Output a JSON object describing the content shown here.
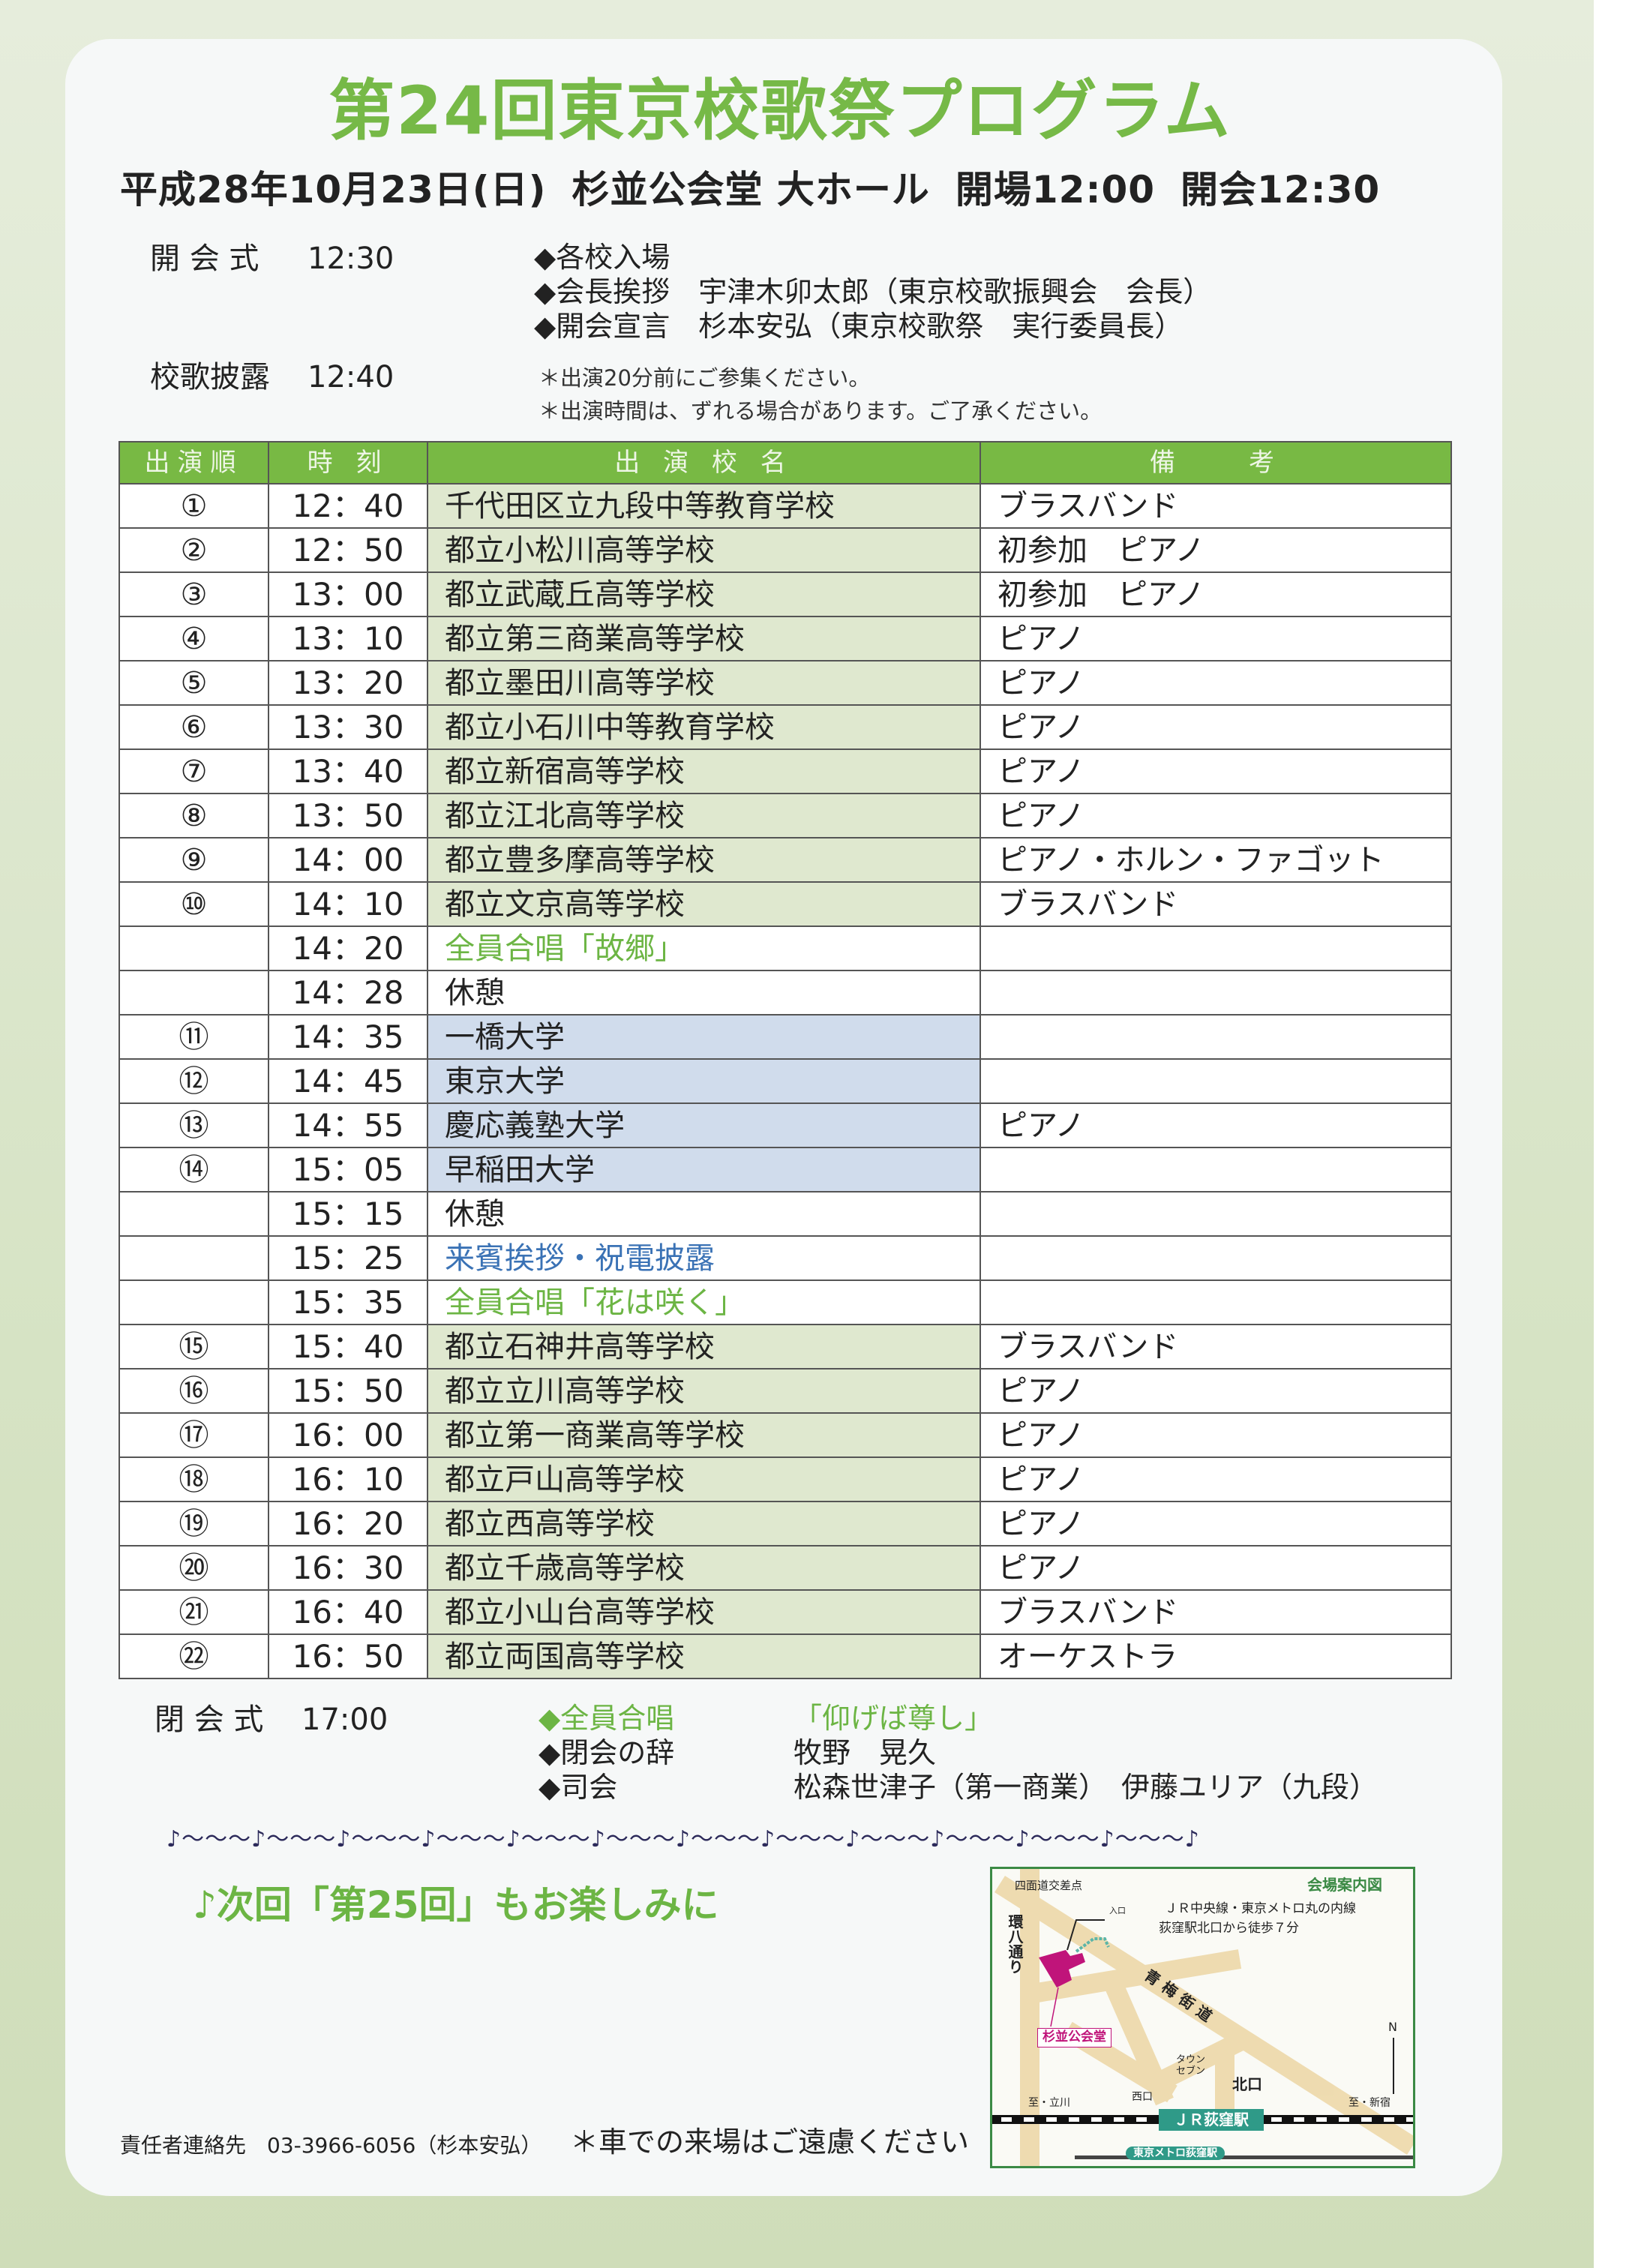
{
  "title": "第24回東京校歌祭プログラム",
  "subtitle": {
    "date": "平成28年10月23日(日)",
    "venue": "杉並公会堂 大ホール",
    "open": "開場12:00",
    "start": "開会12:30"
  },
  "opening": {
    "label": "開 会 式",
    "time": "12:30",
    "items": [
      "◆各校入場",
      "◆会長挨拶　宇津木卯太郎（東京校歌振興会　会長）",
      "◆開会宣言　杉本安弘（東京校歌祭　実行委員長）"
    ]
  },
  "songs": {
    "label": "校歌披露",
    "time": "12:40",
    "notes": [
      "＊出演20分前にご参集ください。",
      "＊出演時間は、ずれる場合があります。ご了承ください。"
    ]
  },
  "table": {
    "headers": [
      "出演順",
      "時 刻",
      "出 演 校 名",
      "備　　考"
    ],
    "rows": [
      {
        "no": "①",
        "time": "12：40",
        "name": "千代田区立九段中等教育学校",
        "note": "ブラスバンド",
        "style": "school"
      },
      {
        "no": "②",
        "time": "12：50",
        "name": "都立小松川高等学校",
        "note": "初参加　ピアノ",
        "style": "school"
      },
      {
        "no": "③",
        "time": "13：00",
        "name": "都立武蔵丘高等学校",
        "note": "初参加　ピアノ",
        "style": "school"
      },
      {
        "no": "④",
        "time": "13：10",
        "name": "都立第三商業高等学校",
        "note": "ピアノ",
        "style": "school"
      },
      {
        "no": "⑤",
        "time": "13：20",
        "name": "都立墨田川高等学校",
        "note": "ピアノ",
        "style": "school"
      },
      {
        "no": "⑥",
        "time": "13：30",
        "name": "都立小石川中等教育学校",
        "note": "ピアノ",
        "style": "school"
      },
      {
        "no": "⑦",
        "time": "13：40",
        "name": "都立新宿高等学校",
        "note": "ピアノ",
        "style": "school"
      },
      {
        "no": "⑧",
        "time": "13：50",
        "name": "都立江北高等学校",
        "note": "ピアノ",
        "style": "school"
      },
      {
        "no": "⑨",
        "time": "14：00",
        "name": "都立豊多摩高等学校",
        "note": "ピアノ・ホルン・ファゴット",
        "style": "school"
      },
      {
        "no": "⑩",
        "time": "14：10",
        "name": "都立文京高等学校",
        "note": "ブラスバンド",
        "style": "school"
      },
      {
        "no": "",
        "time": "14：20",
        "name": "全員合唱「故郷」",
        "note": "",
        "style": "event-green"
      },
      {
        "no": "",
        "time": "14：28",
        "name": "休憩",
        "note": "",
        "style": "plain"
      },
      {
        "no": "⑪",
        "time": "14：35",
        "name": "一橋大学",
        "note": "",
        "style": "univ"
      },
      {
        "no": "⑫",
        "time": "14：45",
        "name": "東京大学",
        "note": "",
        "style": "univ"
      },
      {
        "no": "⑬",
        "time": "14：55",
        "name": "慶応義塾大学",
        "note": "ピアノ",
        "style": "univ"
      },
      {
        "no": "⑭",
        "time": "15：05",
        "name": "早稲田大学",
        "note": "",
        "style": "univ"
      },
      {
        "no": "",
        "time": "15：15",
        "name": "休憩",
        "note": "",
        "style": "plain"
      },
      {
        "no": "",
        "time": "15：25",
        "name": "来賓挨拶・祝電披露",
        "note": "",
        "style": "event-blue"
      },
      {
        "no": "",
        "time": "15：35",
        "name": "全員合唱「花は咲く」",
        "note": "",
        "style": "event-green"
      },
      {
        "no": "⑮",
        "time": "15：40",
        "name": "都立石神井高等学校",
        "note": "ブラスバンド",
        "style": "school"
      },
      {
        "no": "⑯",
        "time": "15：50",
        "name": "都立立川高等学校",
        "note": "ピアノ",
        "style": "school"
      },
      {
        "no": "⑰",
        "time": "16：00",
        "name": "都立第一商業高等学校",
        "note": "ピアノ",
        "style": "school"
      },
      {
        "no": "⑱",
        "time": "16：10",
        "name": "都立戸山高等学校",
        "note": "ピアノ",
        "style": "school"
      },
      {
        "no": "⑲",
        "time": "16：20",
        "name": "都立西高等学校",
        "note": "ピアノ",
        "style": "school"
      },
      {
        "no": "⑳",
        "time": "16：30",
        "name": "都立千歳高等学校",
        "note": "ピアノ",
        "style": "school"
      },
      {
        "no": "㉑",
        "time": "16：40",
        "name": "都立小山台高等学校",
        "note": "ブラスバンド",
        "style": "school"
      },
      {
        "no": "㉒",
        "time": "16：50",
        "name": "都立両国高等学校",
        "note": "オーケストラ",
        "style": "school"
      }
    ]
  },
  "closing": {
    "label": "閉 会 式",
    "time": "17:00",
    "items": [
      {
        "title": "◆全員合唱",
        "detail": "「仰げば尊し」"
      },
      {
        "title": "◆閉会の辞",
        "detail": "牧野　晃久"
      },
      {
        "title": "◆司会",
        "detail": "松森世津子（第一商業）　伊藤ユリア（九段）"
      }
    ]
  },
  "music_line": "♪～～～♪～～～♪～～～♪～～～♪～～～♪～～～♪～～～♪～～～♪～～～♪～～～♪～～～♪～～～♪",
  "next": "♪次回「第25回」もお楽しみに",
  "map": {
    "title": "会場案内図",
    "access": [
      "ＪＲ中央線・東京メトロ丸の内線",
      "荻窪駅北口から徒歩７分"
    ],
    "intersection": "四面道交差点",
    "entrance": "入口",
    "kanpachi": "環八通り",
    "ome": "青梅街道",
    "venue": "杉並公会堂",
    "north": "N",
    "townseven": "タウンセブン",
    "kitaguchi": "北口",
    "nishiguchi": "西口",
    "to_tachikawa": "至・立川",
    "to_shinjuku": "至・新宿",
    "jr_station": "ＪＲ荻窪駅",
    "metro_station": "東京メトロ荻窪駅"
  },
  "footer": {
    "contact": "責任者連絡先　03-3966-6056（杉本安弘）",
    "car": "＊車での来場はご遠慮ください"
  },
  "colors": {
    "accent_green": "#76b947",
    "venue_magenta": "#c0147a",
    "station_teal": "#2f9a88"
  }
}
